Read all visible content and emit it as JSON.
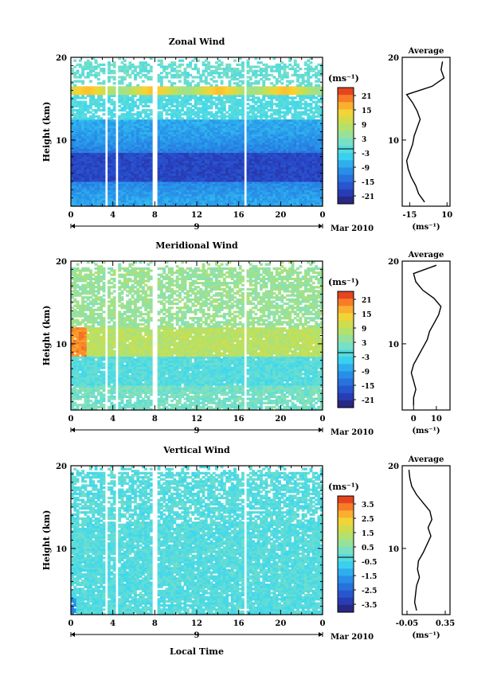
{
  "figure": {
    "xlabel": "Local Time",
    "date_label": "9",
    "month_label": "Mar 2010",
    "ylabel": "Height (km)",
    "unit_label": "(ms⁻¹)",
    "average_title": "Average"
  },
  "chart_data": [
    {
      "type": "heatmap",
      "title": "Zonal Wind",
      "xlabel": "Local Time",
      "ylabel": "Height (km)",
      "x_ticks": [
        "0",
        "4",
        "8",
        "12",
        "16",
        "20",
        "0"
      ],
      "xlim": [
        0,
        24
      ],
      "ylim": [
        2,
        20
      ],
      "y_ticks": [
        "20",
        "10"
      ],
      "colorbar": {
        "label": "(ms⁻¹)",
        "ticks": [
          "21",
          "15",
          "9",
          "3",
          "-3",
          "-9",
          "-15",
          "-21"
        ],
        "range": [
          -24,
          24
        ]
      },
      "profile": {
        "title": "Average",
        "xlabel": "(ms⁻¹)",
        "x_ticks": [
          "-15",
          "10"
        ],
        "xlim": [
          -20,
          12
        ],
        "heights": [
          2.5,
          3.5,
          4.5,
          5.5,
          6.5,
          7.5,
          8.5,
          9.5,
          10.5,
          11.5,
          12.5,
          13.5,
          14.5,
          15.5,
          16.5,
          17.5,
          18.5,
          19.5
        ],
        "values": [
          -5,
          -9,
          -11,
          -14,
          -16,
          -17,
          -15,
          -13,
          -12,
          -10,
          -8,
          -10,
          -13,
          -17,
          0,
          8,
          6,
          7
        ]
      }
    },
    {
      "type": "heatmap",
      "title": "Meridional Wind",
      "xlabel": "Local Time",
      "ylabel": "Height (km)",
      "x_ticks": [
        "0",
        "4",
        "8",
        "12",
        "16",
        "20",
        "0"
      ],
      "xlim": [
        0,
        24
      ],
      "ylim": [
        2,
        20
      ],
      "y_ticks": [
        "20",
        "10"
      ],
      "colorbar": {
        "label": "(ms⁻¹)",
        "ticks": [
          "21",
          "15",
          "9",
          "3",
          "-3",
          "-9",
          "-15",
          "-21"
        ],
        "range": [
          -24,
          24
        ]
      },
      "profile": {
        "title": "Average",
        "xlabel": "(ms⁻¹)",
        "x_ticks": [
          "0",
          "10"
        ],
        "xlim": [
          -5,
          16
        ],
        "heights": [
          2.5,
          3.5,
          4.5,
          5.5,
          6.5,
          7.5,
          8.5,
          9.5,
          10.5,
          11.5,
          12.5,
          13.5,
          14.5,
          15.5,
          16.5,
          17.5,
          18.5,
          19.5
        ],
        "values": [
          0,
          0,
          1,
          0,
          -1,
          0,
          2,
          4,
          6,
          7,
          9,
          11,
          12,
          9,
          4,
          1,
          0,
          10
        ]
      }
    },
    {
      "type": "heatmap",
      "title": "Vertical Wind",
      "xlabel": "Local Time",
      "ylabel": "Height (km)",
      "x_ticks": [
        "0",
        "4",
        "8",
        "12",
        "16",
        "20",
        "0"
      ],
      "xlim": [
        0,
        24
      ],
      "ylim": [
        2,
        20
      ],
      "y_ticks": [
        "20",
        "10"
      ],
      "colorbar": {
        "label": "(ms⁻¹)",
        "ticks": [
          "3.5",
          "2.5",
          "1.5",
          "0.5",
          "-0.5",
          "-1.5",
          "-2.5",
          "-3.5"
        ],
        "range": [
          -4,
          4
        ]
      },
      "profile": {
        "title": "Average",
        "xlabel": "(ms⁻¹)",
        "x_ticks": [
          "-0.05",
          "0.35"
        ],
        "xlim": [
          -0.1,
          0.4
        ],
        "heights": [
          2.5,
          3.5,
          4.5,
          5.5,
          6.5,
          7.5,
          8.5,
          9.5,
          10.5,
          11.5,
          12.5,
          13.5,
          14.5,
          15.5,
          16.5,
          17.5,
          18.5,
          19.5
        ],
        "values": [
          0.05,
          0.03,
          0.04,
          0.05,
          0.08,
          0.06,
          0.07,
          0.12,
          0.16,
          0.2,
          0.17,
          0.21,
          0.19,
          0.12,
          0.05,
          0.0,
          -0.02,
          -0.03
        ]
      }
    }
  ]
}
